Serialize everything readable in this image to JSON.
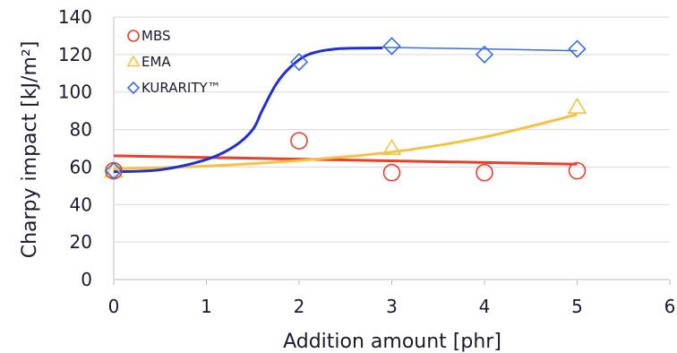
{
  "chart_data": {
    "type": "scatter",
    "xlabel": "Addition amount [phr]",
    "ylabel": "Charpy impact [kJ/m²]",
    "xlim": [
      0,
      6
    ],
    "ylim": [
      0,
      140
    ],
    "xticks": [
      "0",
      "1",
      "2",
      "3",
      "4",
      "5",
      "6"
    ],
    "yticks": [
      "0",
      "20",
      "40",
      "60",
      "80",
      "100",
      "120",
      "140"
    ],
    "grid": "horizontal",
    "legend_position": "top-left",
    "series": [
      {
        "name": "MBS",
        "marker": "circle",
        "color": "#e8402a",
        "points": [
          [
            0,
            58
          ],
          [
            2,
            74
          ],
          [
            3,
            57
          ],
          [
            4,
            57
          ],
          [
            5,
            58
          ]
        ],
        "trend_type": "linear",
        "trend": [
          [
            0,
            66
          ],
          [
            5,
            61.5
          ]
        ]
      },
      {
        "name": "EMA",
        "marker": "triangle",
        "color": "#f5c242",
        "points": [
          [
            0,
            58
          ],
          [
            3,
            70
          ],
          [
            5,
            92
          ]
        ],
        "trend_type": "curve",
        "trend": [
          [
            0,
            59
          ],
          [
            1,
            60.5
          ],
          [
            2,
            63.5
          ],
          [
            3,
            68
          ],
          [
            4,
            76
          ],
          [
            5,
            88
          ]
        ]
      },
      {
        "name": "KURARITY™",
        "marker": "diamond",
        "color": "#3a6fe0",
        "points": [
          [
            0,
            58
          ],
          [
            2,
            116
          ],
          [
            3,
            124.5
          ],
          [
            4,
            120
          ],
          [
            5,
            123
          ]
        ],
        "trend_type": "curve",
        "trend": [
          [
            0,
            57.5
          ],
          [
            0.5,
            58.5
          ],
          [
            1,
            64
          ],
          [
            1.3,
            71
          ],
          [
            1.5,
            80
          ],
          [
            1.6,
            90
          ],
          [
            1.75,
            104
          ],
          [
            1.9,
            113
          ],
          [
            2.1,
            120
          ],
          [
            2.4,
            123
          ],
          [
            2.9,
            123.5
          ]
        ],
        "trend_ext": [
          [
            2.9,
            123.8
          ],
          [
            4,
            123
          ],
          [
            5,
            122
          ]
        ],
        "trend_color": "#1f2fd6"
      }
    ]
  }
}
